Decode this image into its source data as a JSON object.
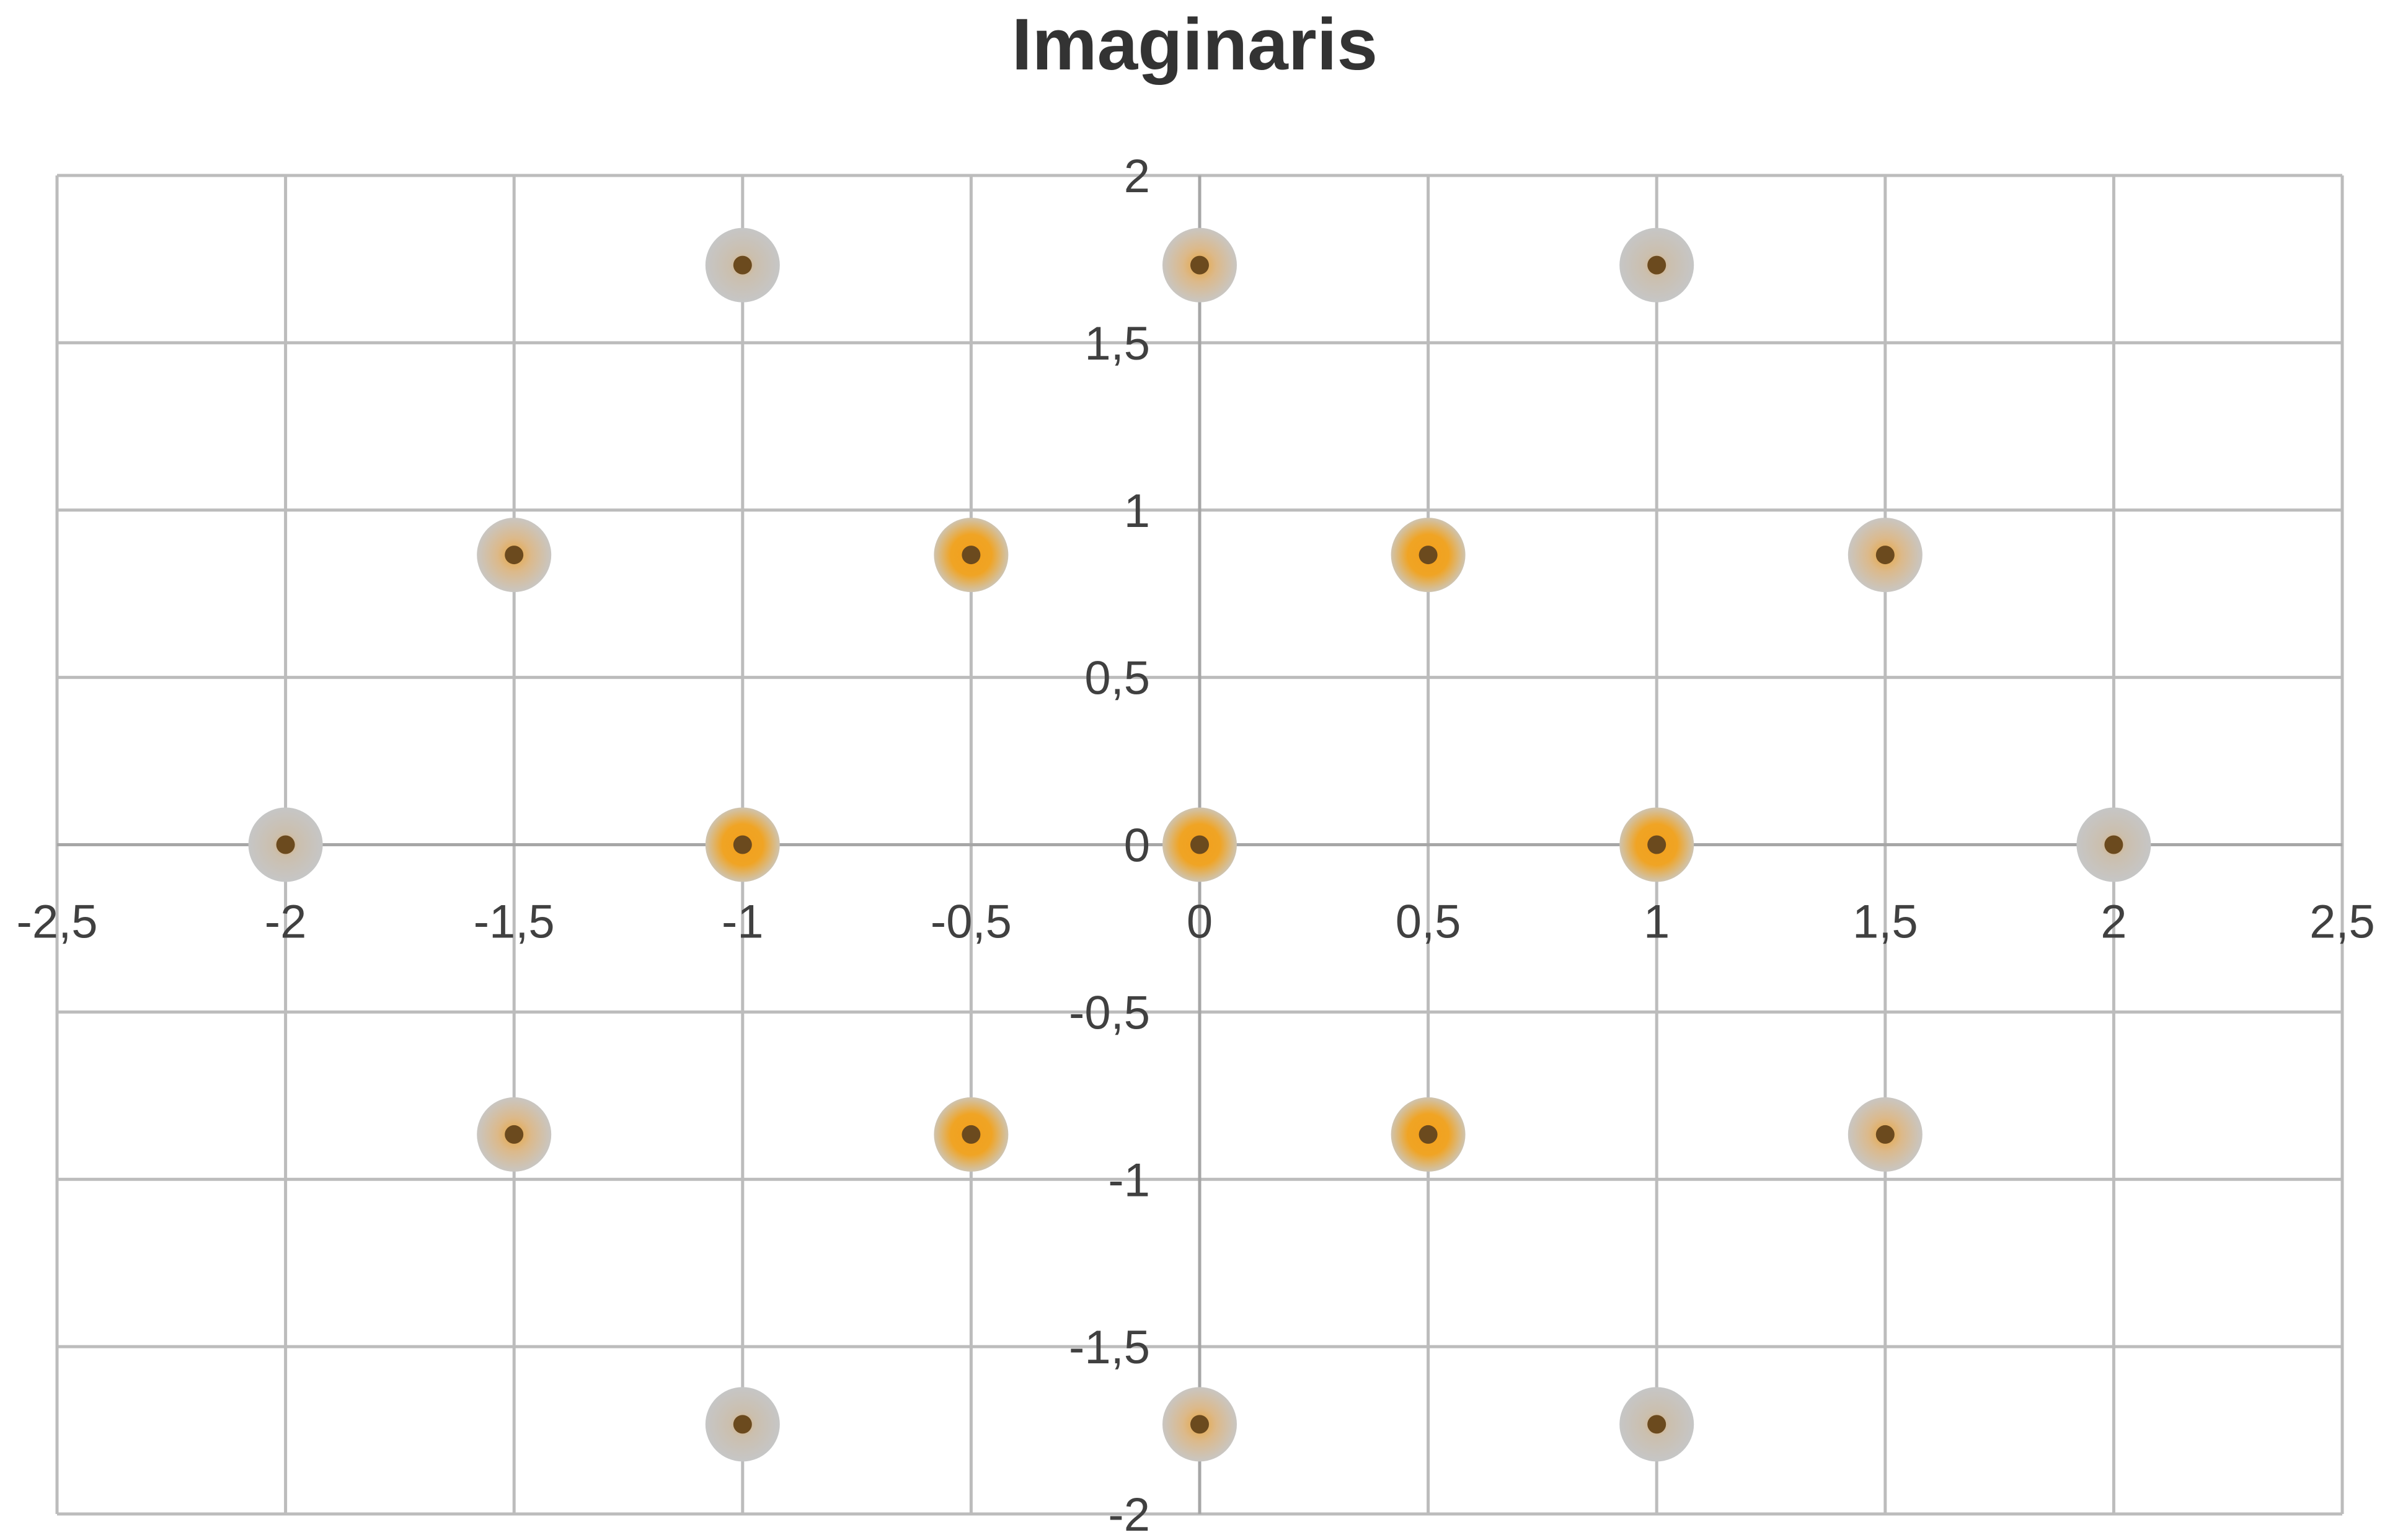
{
  "chart_data": {
    "type": "scatter",
    "title": "Imaginaris",
    "xlabel": "",
    "ylabel": "",
    "xlim": [
      -2.5,
      2.5
    ],
    "ylim": [
      -2,
      2
    ],
    "x_ticks": [
      -2.5,
      -2,
      -1.5,
      -1,
      -0.5,
      0,
      0.5,
      1,
      1.5,
      2,
      2.5
    ],
    "y_ticks": [
      -2,
      -1.5,
      -1,
      -0.5,
      0,
      0.5,
      1,
      1.5,
      2
    ],
    "x_tick_labels": [
      "-2,5",
      "-2",
      "-1,5",
      "-1",
      "-0,5",
      "0",
      "0,5",
      "1",
      "1,5",
      "2",
      "2,5"
    ],
    "y_tick_labels": [
      "-2",
      "-1,5",
      "-1",
      "-0,5",
      "0",
      "0,5",
      "1",
      "1,5",
      "2"
    ],
    "grid": true,
    "legend": "none",
    "points": [
      {
        "x": -1,
        "y": 1.732,
        "glow": "gray"
      },
      {
        "x": 0,
        "y": 1.732,
        "glow": "mixed"
      },
      {
        "x": 1,
        "y": 1.732,
        "glow": "gray"
      },
      {
        "x": -1.5,
        "y": 0.866,
        "glow": "mixed"
      },
      {
        "x": -0.5,
        "y": 0.866,
        "glow": "orange"
      },
      {
        "x": 0.5,
        "y": 0.866,
        "glow": "orange"
      },
      {
        "x": 1.5,
        "y": 0.866,
        "glow": "mixed"
      },
      {
        "x": -2,
        "y": 0,
        "glow": "gray"
      },
      {
        "x": -1,
        "y": 0,
        "glow": "orange"
      },
      {
        "x": 0,
        "y": 0,
        "glow": "orange"
      },
      {
        "x": 1,
        "y": 0,
        "glow": "orange"
      },
      {
        "x": 2,
        "y": 0,
        "glow": "gray"
      },
      {
        "x": -1.5,
        "y": -0.866,
        "glow": "mixed"
      },
      {
        "x": -0.5,
        "y": -0.866,
        "glow": "orange"
      },
      {
        "x": 0.5,
        "y": -0.866,
        "glow": "orange"
      },
      {
        "x": 1.5,
        "y": -0.866,
        "glow": "mixed"
      },
      {
        "x": -1,
        "y": -1.732,
        "glow": "gray"
      },
      {
        "x": 0,
        "y": -1.732,
        "glow": "mixed"
      },
      {
        "x": 1,
        "y": -1.732,
        "glow": "gray"
      }
    ],
    "colors": {
      "marker": "#6b4a1e",
      "glow_orange": "#f0a020",
      "glow_gray": "#c8c8c8",
      "grid": "#bcbcbc"
    }
  }
}
